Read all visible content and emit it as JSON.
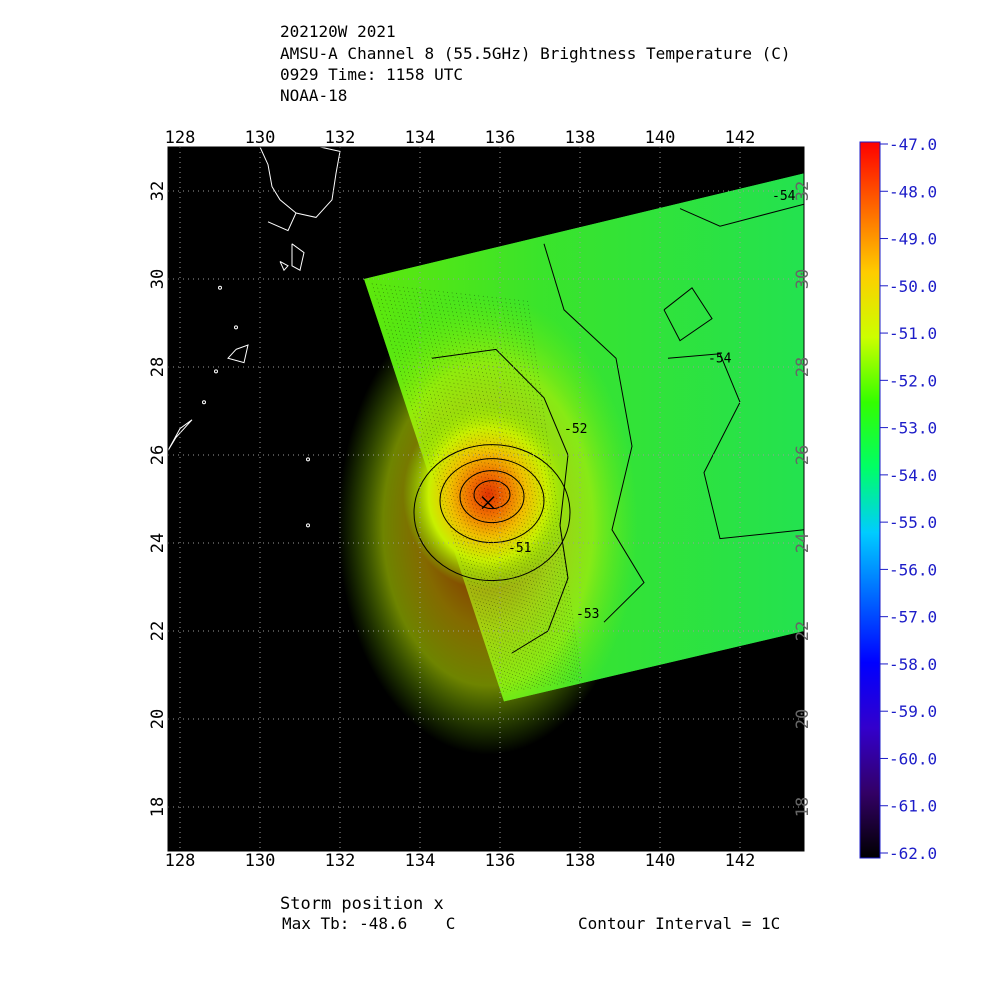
{
  "header": {
    "line1": "202120W 2021",
    "line2": "AMSU-A Channel 8 (55.5GHz) Brightness Temperature (C)",
    "line3": "0929 Time: 1158 UTC",
    "line4": "NOAA-18"
  },
  "footer": {
    "storm_position": "Storm position x",
    "max_tb": "Max Tb: -48.6    C",
    "contour_interval": "Contour Interval = 1C"
  },
  "chart_data": {
    "type": "heatmap",
    "title": "AMSU-A Channel 8 (55.5GHz) Brightness Temperature (C)",
    "xlabel": "",
    "ylabel": "",
    "xlim": [
      127.7,
      143.6
    ],
    "ylim": [
      17.0,
      33.0
    ],
    "x_ticks": [
      128,
      130,
      132,
      134,
      136,
      138,
      140,
      142
    ],
    "y_ticks": [
      18,
      20,
      22,
      24,
      26,
      28,
      30,
      32
    ],
    "grid": true,
    "swath_corners_lonlat": [
      [
        132.6,
        30.0
      ],
      [
        143.6,
        32.4
      ],
      [
        143.6,
        22.0
      ],
      [
        136.1,
        20.4
      ]
    ],
    "storm_center": {
      "lon": 135.7,
      "lat": 25.1
    },
    "max_tb": -48.6,
    "contour_labels": [
      {
        "text": "-54",
        "lon": 142.8,
        "lat": 31.8
      },
      {
        "text": "-54",
        "lon": 141.2,
        "lat": 28.1
      },
      {
        "text": "-52",
        "lon": 137.6,
        "lat": 26.5
      },
      {
        "text": "-51",
        "lon": 136.2,
        "lat": 23.8
      },
      {
        "text": "-53",
        "lon": 137.9,
        "lat": 22.3
      }
    ],
    "colorbar": {
      "min": -62.0,
      "max": -47.0,
      "ticks": [
        "-47.0",
        "-48.0",
        "-49.0",
        "-50.0",
        "-51.0",
        "-52.0",
        "-53.0",
        "-54.0",
        "-55.0",
        "-56.0",
        "-57.0",
        "-58.0",
        "-59.0",
        "-60.0",
        "-61.0",
        "-62.0"
      ],
      "colors": [
        "#ff0000",
        "#ff6600",
        "#ffcc00",
        "#ccff00",
        "#33ff00",
        "#00ff66",
        "#00ccff",
        "#0066ff",
        "#0000ff",
        "#3300cc",
        "#330066",
        "#000000"
      ]
    },
    "colors": {
      "background": "#000000",
      "swath_base": "#2ee82e",
      "warm_core": "#ee4400",
      "coastline": "#ffffff",
      "grid": "#9a9a9a",
      "contour": "#000000"
    }
  }
}
